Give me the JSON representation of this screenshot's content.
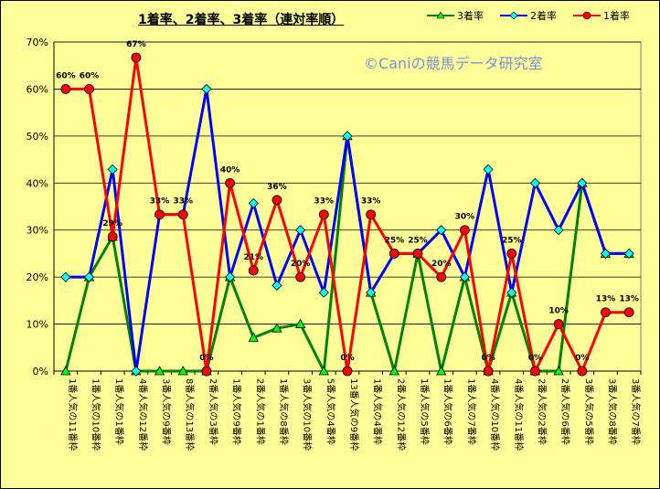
{
  "chart_data": {
    "type": "line",
    "title": "1着率、2着率、3着率（連対率順）",
    "watermark": "©Caniの競馬データ研究室",
    "xlabel": "",
    "ylabel": "",
    "ylim": [
      0,
      70
    ],
    "yticks": [
      "0%",
      "10%",
      "20%",
      "30%",
      "40%",
      "50%",
      "60%",
      "70%"
    ],
    "grid": true,
    "legend_position": "top-right",
    "categories": [
      "1番人気の11番枠",
      "1番人気の10番枠",
      "1番人気の1番枠",
      "4番人気の12番枠",
      "3番人気の9番枠",
      "8番人気の13番枠",
      "2番人気の3番枠",
      "1番人気の9番枠",
      "2番人気の1番枠",
      "1番人気の8番枠",
      "3番人気の10番枠",
      "5番人気の4番枠",
      "13番人気の9番枠",
      "1番人気の4番枠",
      "2番人気の12番枠",
      "1番人気の5番枠",
      "1番人気の6番枠",
      "1番人気の7番枠",
      "4番人気の10番枠",
      "4番人気の11番枠",
      "2番人気の2番枠",
      "2番人気の6番枠",
      "3番人気の5番枠",
      "3番人気の8番枠",
      "3番人気の7番枠"
    ],
    "series": [
      {
        "name": "3着率",
        "color": "#008000",
        "marker": "triangle",
        "marker_color": "#00ff00",
        "values": [
          0,
          20,
          28.6,
          0,
          0,
          0,
          0,
          20,
          7.1,
          9.1,
          10,
          0,
          50,
          16.7,
          0,
          25,
          0,
          20,
          0,
          16.7,
          0,
          0,
          40,
          25,
          25
        ]
      },
      {
        "name": "2着率",
        "color": "#0000ff",
        "marker": "diamond",
        "marker_color": "#00ffff",
        "values": [
          20,
          20,
          42.9,
          0,
          33.3,
          33.3,
          60,
          20,
          35.7,
          18.2,
          30,
          16.7,
          50,
          16.7,
          25,
          25,
          30,
          20,
          42.9,
          16.7,
          40,
          30,
          40,
          25,
          25
        ]
      },
      {
        "name": "1着率",
        "color": "#ff0000",
        "marker": "circle",
        "marker_color": "#ff0000",
        "values": [
          60,
          60,
          28.6,
          66.7,
          33.3,
          33.3,
          0,
          40,
          21.4,
          36.4,
          20,
          33.3,
          0,
          33.3,
          25,
          25,
          20,
          30,
          0,
          25,
          0,
          10,
          0,
          12.5,
          12.5
        ],
        "data_labels": [
          "60%",
          "60%",
          "29%",
          "67%",
          "33%",
          "33%",
          "0%",
          "40%",
          "21%",
          "36%",
          "20%",
          "33%",
          "0%",
          "33%",
          "25%",
          "25%",
          "20%",
          "30%",
          "0%",
          "25%",
          "0%",
          "10%",
          "0%",
          "13%",
          "13%"
        ]
      }
    ]
  }
}
